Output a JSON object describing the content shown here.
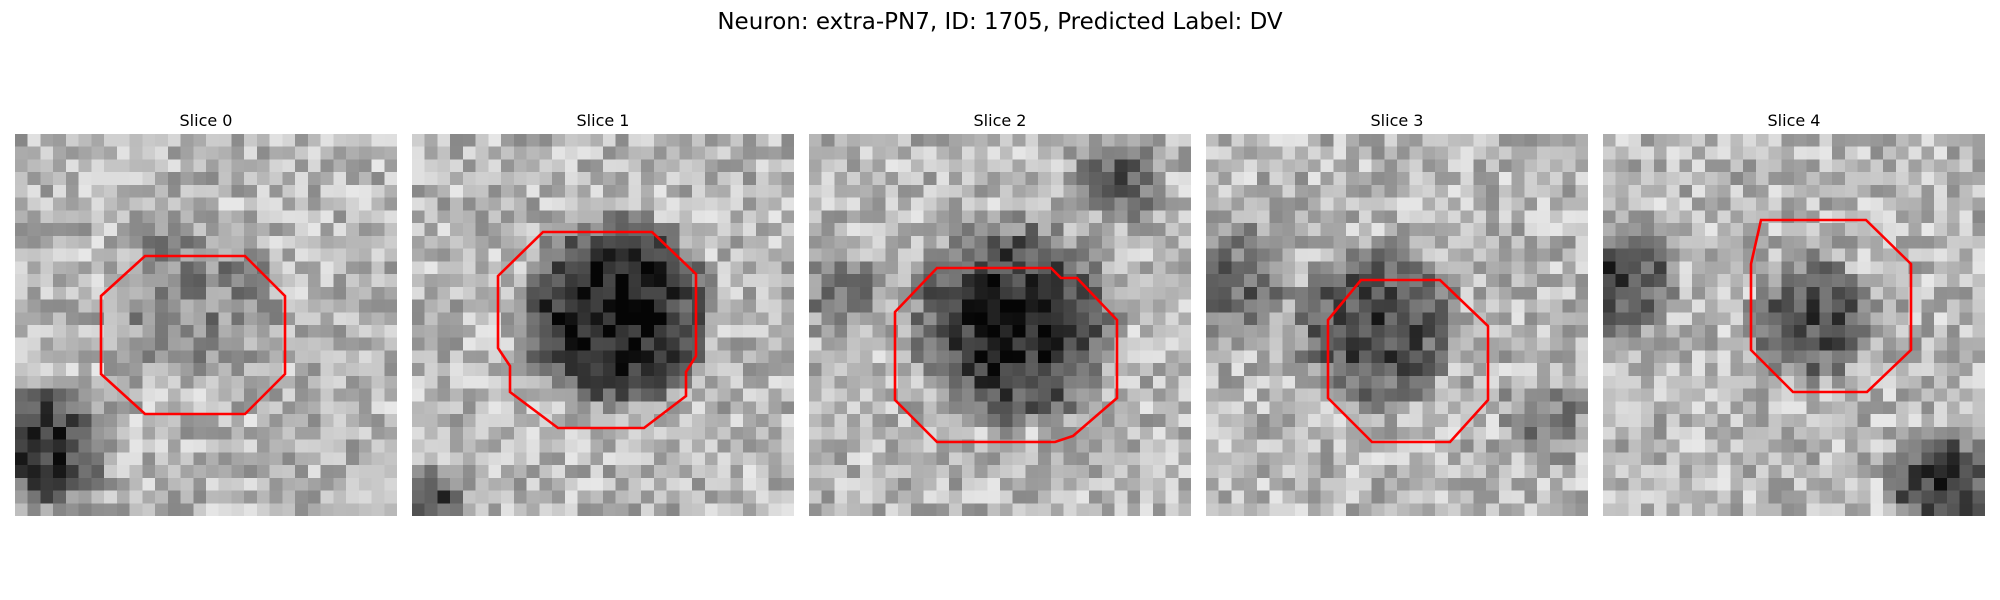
{
  "figure": {
    "title": "Neuron: extra-PN7, ID: 1705, Predicted Label: DV"
  },
  "outline_color": "#ff0000",
  "colormap": "gray",
  "panels": [
    {
      "title": "Slice 0",
      "image": "grayscale microscopy patch with faint mid-gray blob",
      "dark_blob": 0.25
    },
    {
      "title": "Slice 1",
      "image": "grayscale microscopy patch with dark round blob",
      "dark_blob": 0.85
    },
    {
      "title": "Slice 2",
      "image": "grayscale microscopy patch with dark round blob",
      "dark_blob": 0.75
    },
    {
      "title": "Slice 3",
      "image": "grayscale microscopy patch with dark round blob",
      "dark_blob": 0.6
    },
    {
      "title": "Slice 4",
      "image": "grayscale microscopy patch with small dark blob",
      "dark_blob": 0.55
    }
  ]
}
